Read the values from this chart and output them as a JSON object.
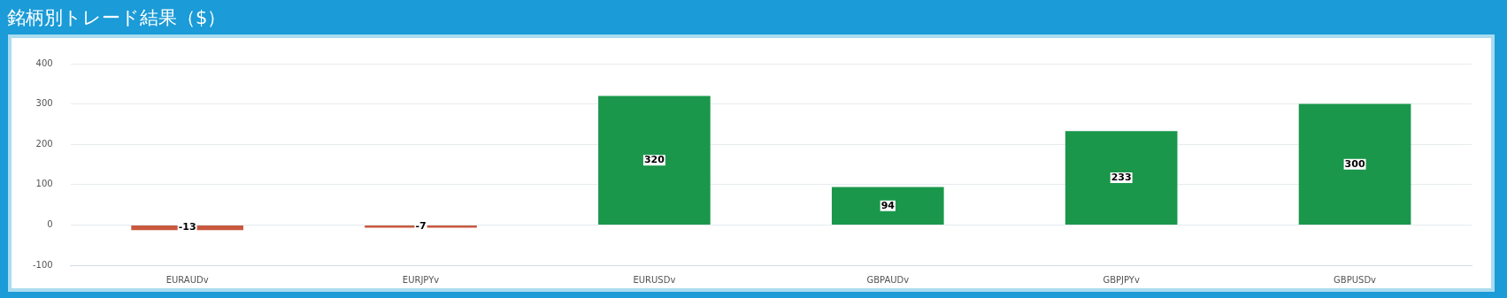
{
  "chart_data": {
    "type": "bar",
    "title": "銘柄別トレード結果（$）",
    "categories": [
      "EURAUDv",
      "EURJPYv",
      "EURUSDv",
      "GBPAUDv",
      "GBPJPYv",
      "GBPUSDv"
    ],
    "values": [
      -13,
      -7,
      320,
      94,
      233,
      300
    ],
    "colors": [
      "#c9583f",
      "#c9583f",
      "#1a974b",
      "#1a974b",
      "#1a974b",
      "#1a974b"
    ],
    "ylim": [
      -100,
      400
    ],
    "yticks": [
      -100,
      0,
      100,
      200,
      300,
      400
    ],
    "grid": "y",
    "data_labels": true,
    "legend": false
  }
}
